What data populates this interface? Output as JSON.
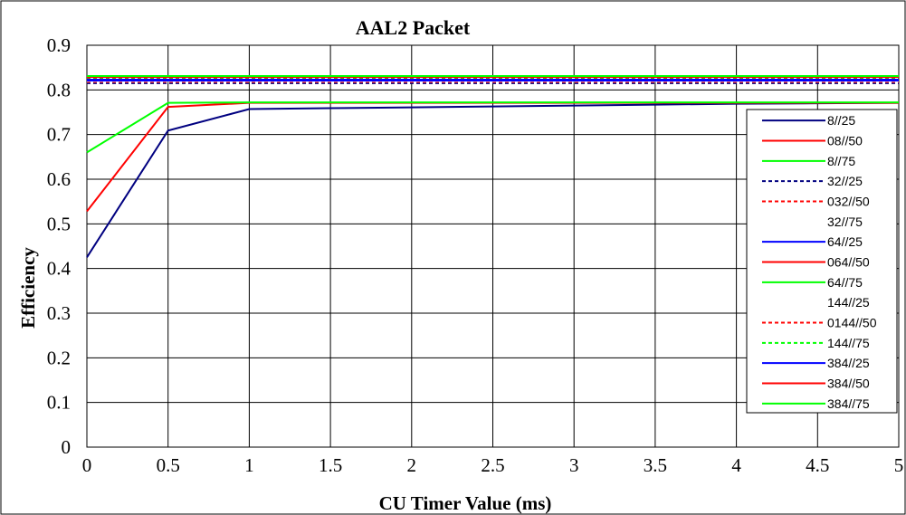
{
  "chart_data": {
    "type": "line",
    "title": "AAL2 Packet",
    "xlabel": "CU Timer Value (ms)",
    "ylabel": "Efficiency",
    "xlim": [
      0,
      5
    ],
    "ylim": [
      0,
      0.9
    ],
    "x_ticks": [
      "0",
      "0.5",
      "1",
      "1.5",
      "2",
      "2.5",
      "3",
      "3.5",
      "4",
      "4.5",
      "5"
    ],
    "y_ticks": [
      "0",
      "0.1",
      "0.2",
      "0.3",
      "0.4",
      "0.5",
      "0.6",
      "0.7",
      "0.8",
      "0.9"
    ],
    "grid": true,
    "legend_position": "right",
    "x": [
      0,
      0.5,
      1,
      1.5,
      2,
      2.5,
      3,
      3.5,
      4,
      4.5,
      5
    ],
    "series": [
      {
        "name": "8//25",
        "color": "#000080",
        "dash": "solid",
        "values": [
          0.425,
          0.709,
          0.757,
          0.759,
          0.761,
          0.763,
          0.765,
          0.767,
          0.769,
          0.77,
          0.771
        ]
      },
      {
        "name": "08//50",
        "color": "#ff0000",
        "dash": "solid",
        "values": [
          0.528,
          0.762,
          0.771,
          0.771,
          0.771,
          0.771,
          0.771,
          0.771,
          0.771,
          0.771,
          0.771
        ]
      },
      {
        "name": "8//75",
        "color": "#00ff00",
        "dash": "solid",
        "values": [
          0.66,
          0.771,
          0.772,
          0.772,
          0.772,
          0.772,
          0.772,
          0.772,
          0.772,
          0.772,
          0.772
        ]
      },
      {
        "name": "32//25",
        "color": "#000080",
        "dash": "dotted",
        "values": [
          0.815,
          0.815,
          0.815,
          0.815,
          0.815,
          0.815,
          0.815,
          0.815,
          0.815,
          0.815,
          0.815
        ]
      },
      {
        "name": "032//50",
        "color": "#ff0000",
        "dash": "dotted",
        "values": [
          0.818,
          0.818,
          0.818,
          0.818,
          0.818,
          0.818,
          0.818,
          0.818,
          0.818,
          0.818,
          0.818
        ]
      },
      {
        "name": "32//75",
        "color": "#ffffff",
        "dash": "solid",
        "values": [
          0.82,
          0.82,
          0.82,
          0.82,
          0.82,
          0.82,
          0.82,
          0.82,
          0.82,
          0.82,
          0.82
        ]
      },
      {
        "name": "64//25",
        "color": "#0000ff",
        "dash": "solid",
        "values": [
          0.821,
          0.821,
          0.821,
          0.821,
          0.821,
          0.821,
          0.821,
          0.821,
          0.821,
          0.821,
          0.821
        ]
      },
      {
        "name": "064//50",
        "color": "#ff0000",
        "dash": "solid",
        "values": [
          0.823,
          0.823,
          0.823,
          0.823,
          0.823,
          0.823,
          0.823,
          0.823,
          0.823,
          0.823,
          0.823
        ]
      },
      {
        "name": "64//75",
        "color": "#00ff00",
        "dash": "solid",
        "values": [
          0.825,
          0.825,
          0.825,
          0.825,
          0.825,
          0.825,
          0.825,
          0.825,
          0.825,
          0.825,
          0.825
        ]
      },
      {
        "name": "144//25",
        "color": "#ffffff",
        "dash": "solid",
        "values": [
          0.826,
          0.826,
          0.826,
          0.826,
          0.826,
          0.826,
          0.826,
          0.826,
          0.826,
          0.826,
          0.826
        ]
      },
      {
        "name": "0144//50",
        "color": "#ff0000",
        "dash": "dotted",
        "values": [
          0.827,
          0.827,
          0.827,
          0.827,
          0.827,
          0.827,
          0.827,
          0.827,
          0.827,
          0.827,
          0.827
        ]
      },
      {
        "name": "144//75",
        "color": "#00ff00",
        "dash": "dotted",
        "values": [
          0.828,
          0.828,
          0.828,
          0.828,
          0.828,
          0.828,
          0.828,
          0.828,
          0.828,
          0.828,
          0.828
        ]
      },
      {
        "name": "384//25",
        "color": "#0000ff",
        "dash": "solid",
        "values": [
          0.823,
          0.823,
          0.823,
          0.823,
          0.823,
          0.823,
          0.823,
          0.823,
          0.823,
          0.823,
          0.823
        ]
      },
      {
        "name": "384//50",
        "color": "#ff0000",
        "dash": "solid",
        "values": [
          0.829,
          0.829,
          0.829,
          0.829,
          0.829,
          0.829,
          0.829,
          0.829,
          0.829,
          0.829,
          0.829
        ]
      },
      {
        "name": "384//75",
        "color": "#00ff00",
        "dash": "solid",
        "values": [
          0.831,
          0.831,
          0.831,
          0.831,
          0.831,
          0.831,
          0.831,
          0.831,
          0.831,
          0.831,
          0.831
        ]
      }
    ]
  }
}
